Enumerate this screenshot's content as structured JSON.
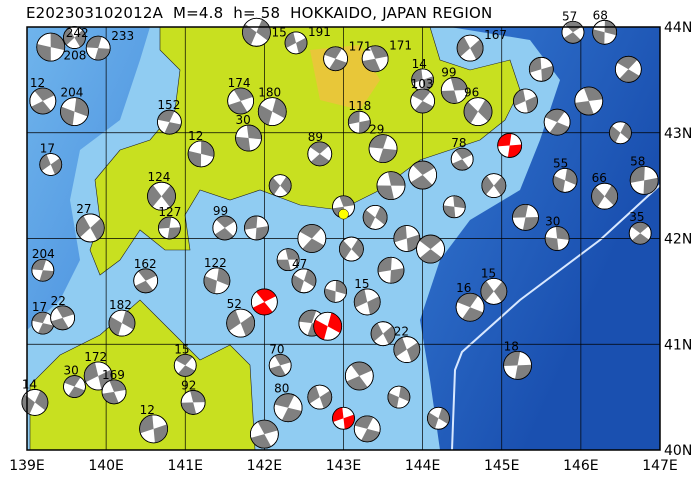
{
  "title": "E202303102012A  M=4.8  h= 58  HOKKAIDO, JAPAN REGION",
  "map": {
    "lon_range": [
      139,
      147
    ],
    "lat_range": [
      40,
      44
    ],
    "x_ticks": [
      "139E",
      "140E",
      "141E",
      "142E",
      "143E",
      "144E",
      "145E",
      "146E",
      "147E"
    ],
    "y_ticks": [
      "44N",
      "43N",
      "42N",
      "41N",
      "40N"
    ],
    "colors": {
      "land": "#c8e020",
      "highland": "#f0c040",
      "shallow": "#88c8f0",
      "ocean": "#3a80d8",
      "deep": "#1a50b0",
      "mechanism": "#808080",
      "target": "#ff0000",
      "epicenter": "#ffff00"
    }
  },
  "events": [
    {
      "lon": 139.3,
      "lat": 43.81,
      "label": "242"
    },
    {
      "lon": 139.6,
      "lat": 43.9,
      "label": "208"
    },
    {
      "lon": 139.9,
      "lat": 43.8,
      "label": "233"
    },
    {
      "lon": 139.2,
      "lat": 43.3,
      "label": "12"
    },
    {
      "lon": 139.6,
      "lat": 43.2,
      "label": "204"
    },
    {
      "lon": 139.3,
      "lat": 42.7,
      "label": "17"
    },
    {
      "lon": 140.8,
      "lat": 43.1,
      "label": "152"
    },
    {
      "lon": 141.7,
      "lat": 43.3,
      "label": "174"
    },
    {
      "lon": 142.1,
      "lat": 43.2,
      "label": "180"
    },
    {
      "lon": 142.4,
      "lat": 43.85,
      "label": "191"
    },
    {
      "lon": 142.9,
      "lat": 43.7,
      "label": "171"
    },
    {
      "lon": 143.4,
      "lat": 43.7,
      "label": "171"
    },
    {
      "lon": 141.9,
      "lat": 43.95,
      "label": "15"
    },
    {
      "lon": 144.0,
      "lat": 43.5,
      "label": "14"
    },
    {
      "lon": 144.0,
      "lat": 43.3,
      "label": "103"
    },
    {
      "lon": 144.4,
      "lat": 43.4,
      "label": "99"
    },
    {
      "lon": 144.7,
      "lat": 43.2,
      "label": "96"
    },
    {
      "lon": 143.2,
      "lat": 43.1,
      "label": "118"
    },
    {
      "lon": 142.7,
      "lat": 42.8,
      "label": "89"
    },
    {
      "lon": 141.8,
      "lat": 42.95,
      "label": "30"
    },
    {
      "lon": 140.7,
      "lat": 42.4,
      "label": "124"
    },
    {
      "lon": 140.8,
      "lat": 42.1,
      "label": "127"
    },
    {
      "lon": 141.5,
      "lat": 42.1,
      "label": "99"
    },
    {
      "lon": 141.2,
      "lat": 42.8,
      "label": "12"
    },
    {
      "lon": 139.8,
      "lat": 42.1,
      "label": "27"
    },
    {
      "lon": 139.2,
      "lat": 41.7,
      "label": "204"
    },
    {
      "lon": 140.5,
      "lat": 41.6,
      "label": "162"
    },
    {
      "lon": 141.4,
      "lat": 41.6,
      "label": "122"
    },
    {
      "lon": 141.7,
      "lat": 41.2,
      "label": "52"
    },
    {
      "lon": 139.2,
      "lat": 41.2,
      "label": "17"
    },
    {
      "lon": 139.45,
      "lat": 41.25,
      "label": "22"
    },
    {
      "lon": 140.2,
      "lat": 41.2,
      "label": "182"
    },
    {
      "lon": 139.9,
      "lat": 40.7,
      "label": "172"
    },
    {
      "lon": 139.6,
      "lat": 40.6,
      "label": "30"
    },
    {
      "lon": 140.1,
      "lat": 40.55,
      "label": "169"
    },
    {
      "lon": 139.1,
      "lat": 40.45,
      "label": "14"
    },
    {
      "lon": 140.6,
      "lat": 40.2,
      "label": "12"
    },
    {
      "lon": 141.0,
      "lat": 40.8,
      "label": "15"
    },
    {
      "lon": 141.1,
      "lat": 40.45,
      "label": "92"
    },
    {
      "lon": 146.3,
      "lat": 42.4,
      "label": "66"
    },
    {
      "lon": 146.8,
      "lat": 42.55,
      "label": "58"
    },
    {
      "lon": 146.75,
      "lat": 42.05,
      "label": "35"
    },
    {
      "lon": 145.7,
      "lat": 42.0,
      "label": "30"
    },
    {
      "lon": 144.9,
      "lat": 41.5,
      "label": "15"
    },
    {
      "lon": 145.2,
      "lat": 40.8,
      "label": "18"
    },
    {
      "lon": 145.9,
      "lat": 43.95,
      "label": "57"
    },
    {
      "lon": 146.3,
      "lat": 43.95,
      "label": "68"
    },
    {
      "lon": 144.6,
      "lat": 43.8,
      "label": "167"
    },
    {
      "lon": 143.5,
      "lat": 42.85,
      "label": "29"
    },
    {
      "lon": 144.5,
      "lat": 42.75,
      "label": "78"
    },
    {
      "lon": 145.8,
      "lat": 42.55,
      "label": "55"
    },
    {
      "lon": 143.8,
      "lat": 40.95,
      "label": "22"
    },
    {
      "lon": 142.3,
      "lat": 40.4,
      "label": "80"
    },
    {
      "lon": 142.2,
      "lat": 40.8,
      "label": "70"
    },
    {
      "lon": 142.5,
      "lat": 41.6,
      "label": "47"
    },
    {
      "lon": 143.3,
      "lat": 41.4,
      "label": "15"
    },
    {
      "lon": 144.6,
      "lat": 41.35,
      "label": "16"
    },
    {
      "lon": 143.0,
      "lat": 42.3,
      "label": ""
    },
    {
      "lon": 143.4,
      "lat": 42.2,
      "label": ""
    },
    {
      "lon": 143.8,
      "lat": 42.0,
      "label": ""
    },
    {
      "lon": 142.6,
      "lat": 42.0,
      "label": ""
    },
    {
      "lon": 142.3,
      "lat": 41.8,
      "label": ""
    },
    {
      "lon": 143.1,
      "lat": 41.9,
      "label": ""
    },
    {
      "lon": 143.6,
      "lat": 41.7,
      "label": ""
    },
    {
      "lon": 144.1,
      "lat": 41.9,
      "label": ""
    },
    {
      "lon": 144.4,
      "lat": 42.3,
      "label": ""
    },
    {
      "lon": 144.9,
      "lat": 42.5,
      "label": ""
    },
    {
      "lon": 145.3,
      "lat": 42.2,
      "label": ""
    },
    {
      "lon": 144.0,
      "lat": 42.6,
      "label": ""
    },
    {
      "lon": 142.9,
      "lat": 41.5,
      "label": ""
    },
    {
      "lon": 143.5,
      "lat": 41.1,
      "label": ""
    },
    {
      "lon": 142.6,
      "lat": 41.2,
      "label": ""
    },
    {
      "lon": 143.2,
      "lat": 40.7,
      "label": ""
    },
    {
      "lon": 143.7,
      "lat": 40.5,
      "label": ""
    },
    {
      "lon": 142.7,
      "lat": 40.5,
      "label": ""
    },
    {
      "lon": 143.3,
      "lat": 40.2,
      "label": ""
    },
    {
      "lon": 142.0,
      "lat": 40.15,
      "label": ""
    },
    {
      "lon": 144.2,
      "lat": 40.3,
      "label": ""
    },
    {
      "lon": 145.3,
      "lat": 43.3,
      "label": ""
    },
    {
      "lon": 145.7,
      "lat": 43.1,
      "label": ""
    },
    {
      "lon": 146.1,
      "lat": 43.3,
      "label": ""
    },
    {
      "lon": 146.5,
      "lat": 43.0,
      "label": ""
    },
    {
      "lon": 145.5,
      "lat": 43.6,
      "label": ""
    },
    {
      "lon": 146.6,
      "lat": 43.6,
      "label": ""
    },
    {
      "lon": 143.6,
      "lat": 42.5,
      "label": ""
    },
    {
      "lon": 142.2,
      "lat": 42.5,
      "label": ""
    },
    {
      "lon": 141.9,
      "lat": 42.1,
      "label": ""
    }
  ],
  "target_events": [
    {
      "lon": 145.1,
      "lat": 42.88
    },
    {
      "lon": 142.0,
      "lat": 41.4
    },
    {
      "lon": 142.8,
      "lat": 41.17
    },
    {
      "lon": 143.0,
      "lat": 40.3
    }
  ],
  "epicenter": {
    "lon": 143.0,
    "lat": 42.23
  }
}
